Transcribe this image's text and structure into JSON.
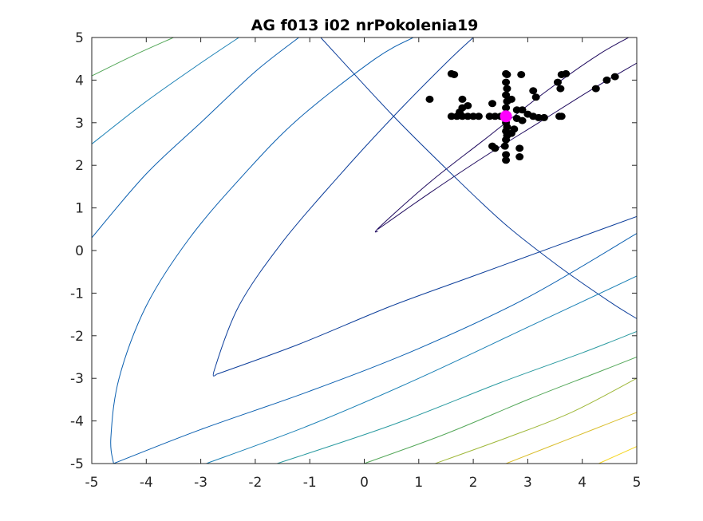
{
  "chart_data": {
    "type": "scatter",
    "title": "AG f013 i02 nrPokolenia19",
    "xlabel": "",
    "ylabel": "",
    "xlim": [
      -5,
      5
    ],
    "ylim": [
      -5,
      5
    ],
    "xticks": [
      "-5",
      "-4",
      "-3",
      "-2",
      "-1",
      "0",
      "1",
      "2",
      "3",
      "4",
      "5"
    ],
    "yticks": [
      "5",
      "4",
      "3",
      "2",
      "1",
      "0",
      "-1",
      "-2",
      "-3",
      "-4",
      "-5"
    ],
    "grid": false,
    "legend": "none",
    "colors": {
      "population": "#000000",
      "best": "#ff00ff",
      "contours": [
        "#1f0a5e",
        "#0b3d9a",
        "#0a5fb0",
        "#1a80b5",
        "#2a9aa0",
        "#55a85a",
        "#9fb83a",
        "#d9bd2a",
        "#f5d51e"
      ]
    },
    "series": [
      {
        "name": "population",
        "points": [
          [
            1.2,
            3.55
          ],
          [
            1.6,
            4.15
          ],
          [
            1.65,
            4.13
          ],
          [
            1.6,
            3.15
          ],
          [
            1.7,
            3.15
          ],
          [
            1.8,
            3.15
          ],
          [
            1.9,
            3.15
          ],
          [
            2.0,
            3.15
          ],
          [
            2.1,
            3.15
          ],
          [
            2.3,
            3.15
          ],
          [
            2.4,
            3.15
          ],
          [
            2.5,
            3.15
          ],
          [
            1.75,
            3.25
          ],
          [
            1.8,
            3.35
          ],
          [
            1.9,
            3.4
          ],
          [
            1.8,
            3.55
          ],
          [
            2.35,
            3.45
          ],
          [
            2.6,
            4.15
          ],
          [
            2.62,
            4.13
          ],
          [
            2.6,
            3.95
          ],
          [
            2.62,
            3.8
          ],
          [
            2.6,
            3.65
          ],
          [
            2.62,
            3.5
          ],
          [
            2.6,
            3.35
          ],
          [
            2.58,
            3.1
          ],
          [
            2.6,
            3.0
          ],
          [
            2.62,
            2.9
          ],
          [
            2.6,
            2.8
          ],
          [
            2.62,
            2.7
          ],
          [
            2.6,
            2.6
          ],
          [
            2.58,
            2.45
          ],
          [
            2.35,
            2.45
          ],
          [
            2.4,
            2.4
          ],
          [
            2.6,
            2.25
          ],
          [
            2.6,
            2.12
          ],
          [
            2.85,
            2.2
          ],
          [
            2.85,
            2.4
          ],
          [
            2.7,
            2.75
          ],
          [
            2.75,
            2.85
          ],
          [
            2.8,
            3.3
          ],
          [
            2.8,
            3.1
          ],
          [
            2.9,
            3.3
          ],
          [
            3.0,
            3.2
          ],
          [
            3.1,
            3.15
          ],
          [
            3.2,
            3.12
          ],
          [
            3.3,
            3.12
          ],
          [
            2.9,
            3.05
          ],
          [
            2.7,
            3.55
          ],
          [
            2.88,
            4.13
          ],
          [
            3.1,
            3.75
          ],
          [
            3.15,
            3.6
          ],
          [
            3.55,
            3.95
          ],
          [
            3.6,
            3.8
          ],
          [
            3.62,
            4.13
          ],
          [
            3.7,
            4.15
          ],
          [
            3.58,
            3.15
          ],
          [
            3.62,
            3.15
          ],
          [
            4.25,
            3.8
          ],
          [
            4.45,
            4.0
          ],
          [
            4.6,
            4.08
          ]
        ]
      },
      {
        "name": "best",
        "points": [
          [
            2.6,
            3.15
          ]
        ]
      }
    ]
  }
}
